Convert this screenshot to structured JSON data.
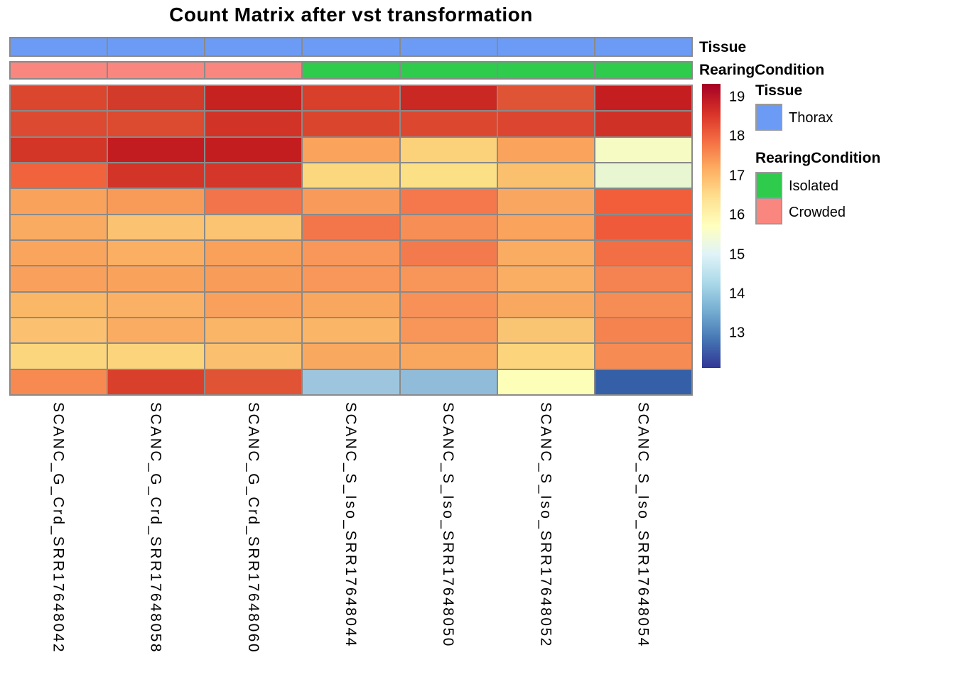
{
  "title": "Count Matrix after vst transformation",
  "annotation_labels": {
    "tissue": "Tissue",
    "rearing": "RearingCondition"
  },
  "legend": {
    "tissue": {
      "title": "Tissue",
      "items": [
        {
          "label": "Thorax",
          "color": "#6C9BF5"
        }
      ]
    },
    "rearing": {
      "title": "RearingCondition",
      "items": [
        {
          "label": "Isolated",
          "color": "#2ECB4D"
        },
        {
          "label": "Crowded",
          "color": "#F9867F"
        }
      ]
    }
  },
  "colorbar": {
    "ticks": [
      "19",
      "18",
      "17",
      "16",
      "15",
      "14",
      "13"
    ],
    "gradient_stops": [
      "#A50026",
      "#D73027",
      "#F46D43",
      "#FDAE61",
      "#FEE090",
      "#FFFFBF",
      "#E0F3F8",
      "#ABD9E9",
      "#74ADD1",
      "#4575B4",
      "#313695"
    ]
  },
  "chart_data": {
    "type": "heatmap",
    "title": "Count Matrix after vst transformation",
    "columns": [
      "SCANC_G_Crd_SRR17648042",
      "SCANC_G_Crd_SRR17648058",
      "SCANC_G_Crd_SRR17648060",
      "SCANC_S_Iso_SRR17648044",
      "SCANC_S_Iso_SRR17648050",
      "SCANC_S_Iso_SRR17648052",
      "SCANC_S_Iso_SRR17648054"
    ],
    "n_rows": 12,
    "row_labels_shown": false,
    "column_annotations": {
      "Tissue": [
        "Thorax",
        "Thorax",
        "Thorax",
        "Thorax",
        "Thorax",
        "Thorax",
        "Thorax"
      ],
      "RearingCondition": [
        "Crowded",
        "Crowded",
        "Crowded",
        "Isolated",
        "Isolated",
        "Isolated",
        "Isolated"
      ]
    },
    "annotation_colors": {
      "Thorax": "#6C9BF5",
      "Isolated": "#2ECB4D",
      "Crowded": "#F9867F"
    },
    "values": [
      [
        18.5,
        18.7,
        18.9,
        18.6,
        18.8,
        18.4,
        18.9
      ],
      [
        18.5,
        18.5,
        18.7,
        18.55,
        18.6,
        18.6,
        18.75
      ],
      [
        18.65,
        19.0,
        19.0,
        17.3,
        16.8,
        17.3,
        15.5
      ],
      [
        18.1,
        18.65,
        18.65,
        16.75,
        16.55,
        17.0,
        15.1
      ],
      [
        17.3,
        17.4,
        17.85,
        17.45,
        17.8,
        17.25,
        17.95
      ],
      [
        17.2,
        16.95,
        16.95,
        17.8,
        17.55,
        17.3,
        18.1
      ],
      [
        17.3,
        17.15,
        17.35,
        17.45,
        17.75,
        17.2,
        17.9
      ],
      [
        17.3,
        17.3,
        17.4,
        17.45,
        17.45,
        17.15,
        17.65
      ],
      [
        17.05,
        17.1,
        17.3,
        17.25,
        17.5,
        17.25,
        17.6
      ],
      [
        16.95,
        17.2,
        17.05,
        17.1,
        17.45,
        16.95,
        17.65
      ],
      [
        16.7,
        16.7,
        17.0,
        17.25,
        17.25,
        16.7,
        17.55
      ],
      [
        17.6,
        18.6,
        18.45,
        14.1,
        13.9,
        15.7,
        12.5
      ]
    ],
    "cell_colors": [
      [
        "#DA462E",
        "#D23A2A",
        "#C62320",
        "#D8402C",
        "#CA2822",
        "#DF5434",
        "#C51E20"
      ],
      [
        "#DC4B31",
        "#DC4A30",
        "#D13427",
        "#DA452E",
        "#DC4730",
        "#DC452F",
        "#D03127"
      ],
      [
        "#D33527",
        "#C31C20",
        "#C41D20",
        "#F9A35C",
        "#FBD179",
        "#F9A35C",
        "#F6FBC4"
      ],
      [
        "#F0633D",
        "#D23528",
        "#D43629",
        "#FBD77E",
        "#FBE086",
        "#FAC06E",
        "#E8F6D2"
      ],
      [
        "#F9A25C",
        "#F89A58",
        "#F2744A",
        "#F89A59",
        "#F4784B",
        "#F9A760",
        "#F15E39"
      ],
      [
        "#FAAB62",
        "#FBC272",
        "#FBC473",
        "#F3764B",
        "#F68E55",
        "#F9A35D",
        "#EF5B3A"
      ],
      [
        "#F9A55E",
        "#FAAF63",
        "#F9A05B",
        "#F89759",
        "#F37A4C",
        "#F9AC62",
        "#F26F45"
      ],
      [
        "#F9A15C",
        "#F9A25C",
        "#F89C59",
        "#F89759",
        "#F89659",
        "#F9AE63",
        "#F58351"
      ],
      [
        "#FAB867",
        "#FAB166",
        "#F9A15C",
        "#F9A75F",
        "#F79157",
        "#F9A85F",
        "#F68D54"
      ],
      [
        "#FBC170",
        "#F9AC62",
        "#FAB566",
        "#FAB567",
        "#F89659",
        "#FAC572",
        "#F58350"
      ],
      [
        "#FBD67D",
        "#FBD47C",
        "#FAC06F",
        "#F9A860",
        "#F9A65E",
        "#FBD47B",
        "#F68C54"
      ],
      [
        "#F68A50",
        "#D9402C",
        "#E05334",
        "#9DC6DE",
        "#90BCDA",
        "#FDFFB9",
        "#3560A7"
      ]
    ],
    "scale": {
      "min": 12.1,
      "max": 19.35,
      "legend_ticks": [
        19,
        18,
        17,
        16,
        15,
        14,
        13
      ],
      "palette": "RdYlBu reversed (low = blue, high = red)"
    },
    "legend_position": "right",
    "grid": true,
    "grid_color": "#8a8a8a"
  }
}
